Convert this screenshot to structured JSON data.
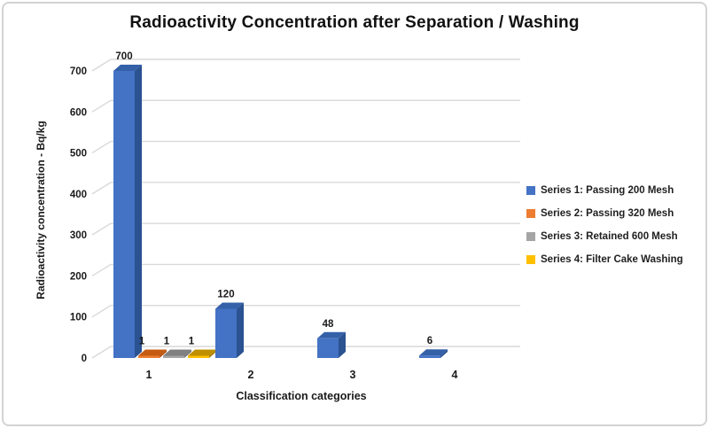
{
  "title": "Radioactivity Concentration after Separation / Washing",
  "axes": {
    "y_title": "Radioactivity concentration - Bq/kg",
    "x_title": "Classification categories",
    "y_ticks": [
      0,
      100,
      200,
      300,
      400,
      500,
      600,
      700
    ],
    "categories": [
      "1",
      "2",
      "3",
      "4"
    ]
  },
  "legend": {
    "items": [
      {
        "label": "Series 1: Passing 200 Mesh",
        "color": "#4472C4"
      },
      {
        "label": "Series 2: Passing 320 Mesh",
        "color": "#ED7D31"
      },
      {
        "label": "Series 3: Retained 600 Mesh",
        "color": "#A5A5A5"
      },
      {
        "label": "Series 4: Filter Cake Washing",
        "color": "#FFC000"
      }
    ]
  },
  "chart_data": {
    "type": "bar",
    "subtype": "3d-clustered-column",
    "title": "Radioactivity Concentration after Separation / Washing",
    "xlabel": "Classification categories",
    "ylabel": "Radioactivity concentration - Bq/kg",
    "categories": [
      "1",
      "2",
      "3",
      "4"
    ],
    "series": [
      {
        "name": "Series 1: Passing 200 Mesh",
        "color": "#4472C4",
        "top": "#3460A8",
        "side": "#2B5291",
        "values": [
          700,
          120,
          48,
          6
        ]
      },
      {
        "name": "Series 2: Passing 320 Mesh",
        "color": "#ED7D31",
        "top": "#C55A11",
        "side": "#B34F0E",
        "values": [
          1,
          null,
          null,
          null
        ]
      },
      {
        "name": "Series 3: Retained 600 Mesh",
        "color": "#A5A5A5",
        "top": "#808080",
        "side": "#757575",
        "values": [
          1,
          null,
          null,
          null
        ]
      },
      {
        "name": "Series 4: Filter Cake Washing",
        "color": "#FFC000",
        "top": "#BF8F00",
        "side": "#A87E00",
        "values": [
          1,
          null,
          null,
          null
        ]
      }
    ],
    "data_labels": [
      [
        "700",
        "120",
        "48",
        "6"
      ],
      [
        "1",
        null,
        null,
        null
      ],
      [
        "1",
        null,
        null,
        null
      ],
      [
        "1",
        null,
        null,
        null
      ]
    ],
    "ylim": [
      0,
      700
    ],
    "grid": true,
    "gridline_color": "#d9d9d9",
    "text_color": "#1a1a1a",
    "legend_position": "right"
  }
}
